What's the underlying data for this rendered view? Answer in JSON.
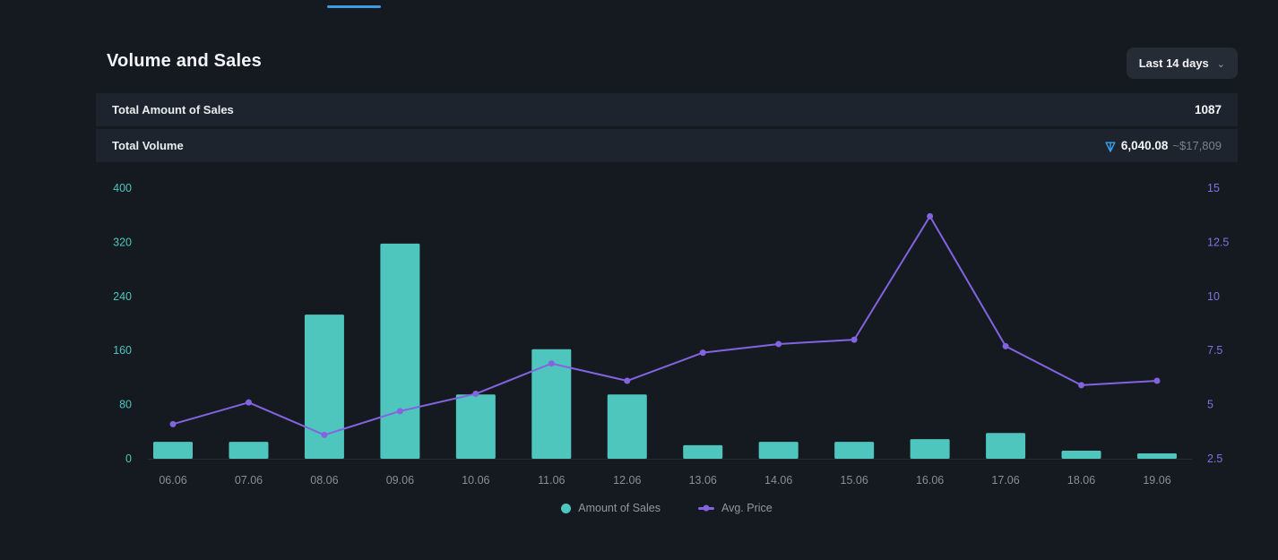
{
  "header": {
    "title": "Volume and Sales",
    "range_selector": {
      "label": "Last 14 days",
      "chevron_icon": "⌄"
    }
  },
  "stats": {
    "rows": [
      {
        "label": "Total Amount of Sales",
        "value": "1087"
      },
      {
        "label": "Total Volume",
        "value_ton": "6,040.08",
        "value_usd": "~$17,809"
      }
    ]
  },
  "legend": {
    "sales": "Amount of Sales",
    "price": "Avg. Price"
  },
  "colors": {
    "background": "#151a21",
    "row_background": "#1e242e",
    "bar_teal": "#4ec6be",
    "line_purple": "#8463e0",
    "left_axis_text": "#4cc5bd",
    "right_axis_text": "#8172e2",
    "x_axis_text": "#878e99",
    "ton_blue": "#3ba2f0",
    "accent_tab": "#3f9be0"
  },
  "chart_data": {
    "type": "bar+line",
    "title": "Volume and Sales",
    "categories": [
      "06.06",
      "07.06",
      "08.06",
      "09.06",
      "10.06",
      "11.06",
      "12.06",
      "13.06",
      "14.06",
      "15.06",
      "16.06",
      "17.06",
      "18.06",
      "19.06"
    ],
    "series": [
      {
        "name": "Amount of Sales",
        "type": "bar",
        "axis": "left",
        "color": "#4ec6be",
        "values": [
          25,
          25,
          213,
          318,
          95,
          162,
          95,
          20,
          25,
          25,
          29,
          38,
          12,
          8
        ]
      },
      {
        "name": "Avg. Price",
        "type": "line",
        "axis": "right",
        "color": "#8463e0",
        "values": [
          4.1,
          5.1,
          3.6,
          4.7,
          5.5,
          6.9,
          6.1,
          7.4,
          7.8,
          8.0,
          13.7,
          7.7,
          5.9,
          6.1
        ]
      }
    ],
    "left_axis": {
      "range": [
        0,
        400
      ],
      "ticks": [
        0,
        80,
        160,
        240,
        320,
        400
      ],
      "color": "#4cc5bd"
    },
    "right_axis": {
      "range": [
        2.5,
        15
      ],
      "ticks": [
        2.5,
        5,
        7.5,
        10,
        12.5,
        15
      ],
      "color": "#8172e2"
    },
    "grid": false,
    "legend_position": "bottom"
  }
}
